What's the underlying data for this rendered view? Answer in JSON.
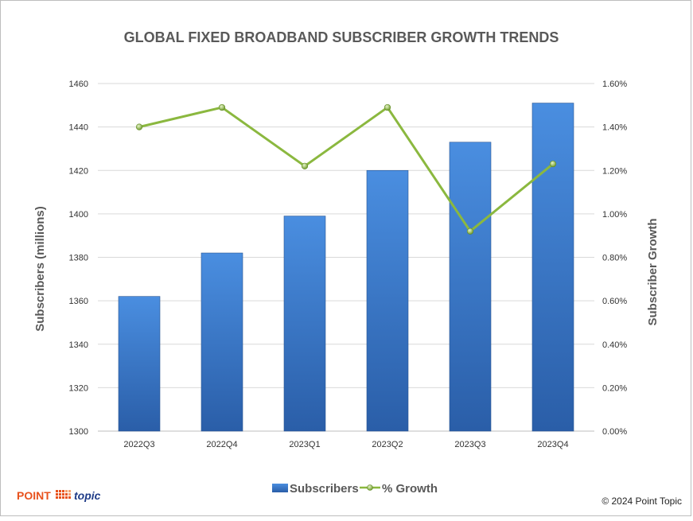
{
  "chart_data": {
    "type": "bar",
    "title": "GLOBAL FIXED BROADBAND SUBSCRIBER GROWTH TRENDS",
    "categories": [
      "2022Q3",
      "2022Q4",
      "2023Q1",
      "2023Q2",
      "2023Q3",
      "2023Q4"
    ],
    "series": [
      {
        "name": "Subscribers",
        "type": "bar",
        "axis": "left",
        "color": "#3a78c9",
        "values": [
          1362,
          1382,
          1399,
          1420,
          1433,
          1451
        ]
      },
      {
        "name": "% Growth",
        "type": "line",
        "axis": "right",
        "color": "#8bb83f",
        "values": [
          1.4,
          1.49,
          1.22,
          1.49,
          0.92,
          1.23
        ]
      }
    ],
    "ylabel": "Subscribers (millions)",
    "y2label": "Subscriber Growth",
    "ylim": [
      1300,
      1460
    ],
    "y2lim": [
      0,
      1.6
    ],
    "yticks": [
      "1300",
      "1320",
      "1340",
      "1360",
      "1380",
      "1400",
      "1420",
      "1440",
      "1460"
    ],
    "y2ticks": [
      "0.00%",
      "0.20%",
      "0.40%",
      "0.60%",
      "0.80%",
      "1.00%",
      "1.20%",
      "1.40%",
      "1.60%"
    ],
    "grid": true,
    "legend_position": "bottom"
  },
  "footer": {
    "logo_point": "POINT",
    "logo_topic": "topic",
    "copyright": "© 2024 Point Topic"
  }
}
